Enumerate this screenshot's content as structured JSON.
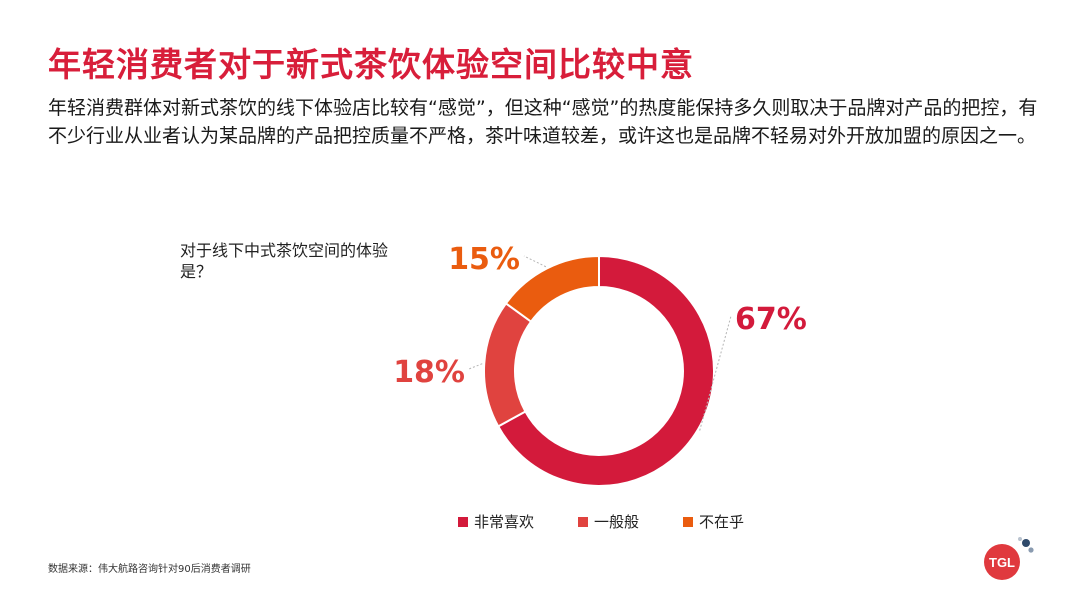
{
  "title": "年轻消费者对于新式茶饮体验空间比较中意",
  "description": "年轻消费群体对新式茶饮的线下体验店比较有“感觉”，但这种“感觉”的热度能保持多久则取决于品牌对产品的把控，有不少行业从业者认为某品牌的产品把控质量不严格，茶叶味道较差，或许这也是品牌不轻易对外开放加盟的原因之一。",
  "source": "数据来源：伟大航路咨询针对90后消费者调研",
  "logo_text": "TGL",
  "colors": {
    "title": "#d81e3a",
    "series": [
      "#d31a3b",
      "#e0433f",
      "#ea5c0f"
    ]
  },
  "chart_data": {
    "type": "pie",
    "subtype": "donut",
    "title": "对于线下中式茶饮空间的体验是？",
    "categories": [
      "非常喜欢",
      "一般般",
      "不在乎"
    ],
    "values": [
      67,
      18,
      15
    ],
    "labels": [
      "67%",
      "18%",
      "15%"
    ],
    "legend_position": "bottom"
  }
}
